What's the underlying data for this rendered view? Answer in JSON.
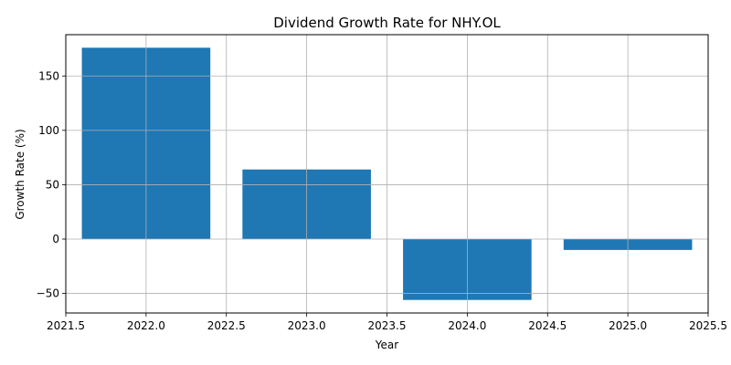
{
  "chart_data": {
    "type": "bar",
    "title": "Dividend Growth Rate for NHY.OL",
    "xlabel": "Year",
    "ylabel": "Growth Rate (%)",
    "x": [
      2022,
      2023,
      2024,
      2025
    ],
    "values": [
      176,
      64,
      -56,
      -10
    ],
    "bar_width": 0.8,
    "xlim": [
      2021.5,
      2025.5
    ],
    "ylim": [
      -68,
      188
    ],
    "xticks": [
      2021.5,
      2022.0,
      2022.5,
      2023.0,
      2023.5,
      2024.0,
      2024.5,
      2025.0,
      2025.5
    ],
    "xtick_labels": [
      "2021.5",
      "2022.0",
      "2022.5",
      "2023.0",
      "2023.5",
      "2024.0",
      "2024.5",
      "2025.0",
      "2025.5"
    ],
    "yticks": [
      -50,
      0,
      50,
      100,
      150
    ],
    "ytick_labels": [
      "−50",
      "0",
      "50",
      "100",
      "150"
    ],
    "grid": true,
    "bar_color": "#1f77b4",
    "grid_color": "#b0b0b0"
  }
}
